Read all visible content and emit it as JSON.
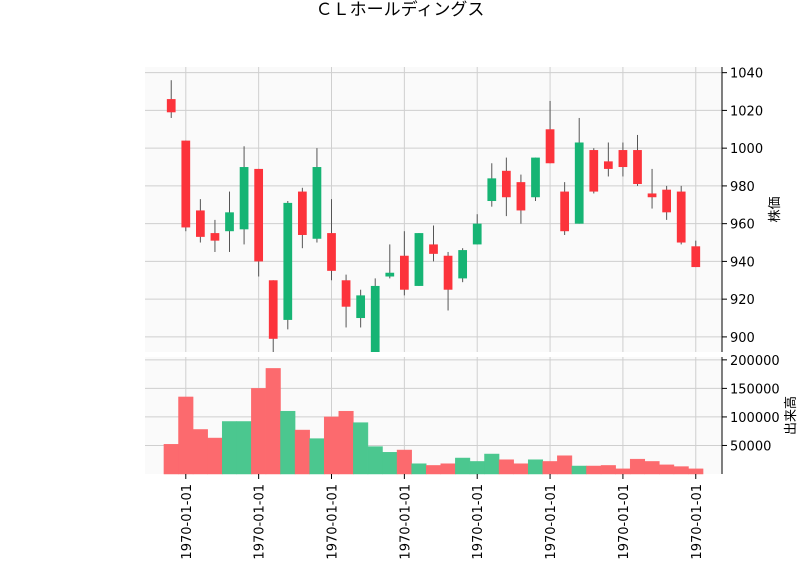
{
  "chart_data": {
    "type": "candlestick",
    "title": "ＣＬホールディングス",
    "up_color": "#16b474",
    "down_color": "#fc333b",
    "up_volume_color": "#4bc78f",
    "down_volume_color": "#fc6a6e",
    "price_panel": {
      "ylabel": "株価",
      "ylim": [
        892,
        1043
      ],
      "yticks": [
        900,
        920,
        940,
        960,
        980,
        1000,
        1020,
        1040
      ],
      "grid": true
    },
    "volume_panel": {
      "ylabel": "出来高",
      "ylim": [
        0,
        205000
      ],
      "yticks": [
        50000,
        100000,
        150000,
        200000
      ],
      "grid": true
    },
    "x_tick_labels": [
      "1970-01-01",
      "1970-01-01",
      "1970-01-01",
      "1970-01-01",
      "1970-01-01",
      "1970-01-01",
      "1970-01-01",
      "1970-01-01"
    ],
    "x_tick_positions": [
      1,
      6,
      11,
      16,
      21,
      26,
      31,
      36
    ],
    "candles": [
      {
        "open": 1026,
        "high": 1036,
        "low": 1016,
        "close": 1019,
        "volume": 52000
      },
      {
        "open": 1004,
        "high": 1004,
        "low": 956,
        "close": 958,
        "volume": 135000
      },
      {
        "open": 967,
        "high": 973,
        "low": 950,
        "close": 953,
        "volume": 78000
      },
      {
        "open": 955,
        "high": 962,
        "low": 945,
        "close": 951,
        "volume": 63000
      },
      {
        "open": 956,
        "high": 977,
        "low": 945,
        "close": 966,
        "volume": 92000
      },
      {
        "open": 957,
        "high": 1001,
        "low": 949,
        "close": 990,
        "volume": 92000
      },
      {
        "open": 989,
        "high": 989,
        "low": 932,
        "close": 940,
        "volume": 150000
      },
      {
        "open": 930,
        "high": 930,
        "low": 892,
        "close": 899,
        "volume": 185000
      },
      {
        "open": 909,
        "high": 972,
        "low": 904,
        "close": 971,
        "volume": 110000
      },
      {
        "open": 977,
        "high": 979,
        "low": 947,
        "close": 954,
        "volume": 77000
      },
      {
        "open": 952,
        "high": 1000,
        "low": 950,
        "close": 990,
        "volume": 62000
      },
      {
        "open": 955,
        "high": 973,
        "low": 930,
        "close": 935,
        "volume": 100000
      },
      {
        "open": 930,
        "high": 933,
        "low": 905,
        "close": 916,
        "volume": 110000
      },
      {
        "open": 910,
        "high": 925,
        "low": 905,
        "close": 922,
        "volume": 90000
      },
      {
        "open": 892,
        "high": 931,
        "low": 892,
        "close": 927,
        "volume": 48000
      },
      {
        "open": 932,
        "high": 949,
        "low": 931,
        "close": 934,
        "volume": 38000
      },
      {
        "open": 943,
        "high": 956,
        "low": 922,
        "close": 925,
        "volume": 42000
      },
      {
        "open": 927,
        "high": 955,
        "low": 927,
        "close": 955,
        "volume": 18000
      },
      {
        "open": 949,
        "high": 959,
        "low": 940,
        "close": 944,
        "volume": 15000
      },
      {
        "open": 943,
        "high": 945,
        "low": 914,
        "close": 925,
        "volume": 18000
      },
      {
        "open": 931,
        "high": 947,
        "low": 929,
        "close": 946,
        "volume": 28000
      },
      {
        "open": 949,
        "high": 965,
        "low": 949,
        "close": 960,
        "volume": 22000
      },
      {
        "open": 972,
        "high": 992,
        "low": 969,
        "close": 984,
        "volume": 35000
      },
      {
        "open": 988,
        "high": 995,
        "low": 964,
        "close": 974,
        "volume": 25000
      },
      {
        "open": 982,
        "high": 986,
        "low": 960,
        "close": 967,
        "volume": 18000
      },
      {
        "open": 974,
        "high": 995,
        "low": 972,
        "close": 995,
        "volume": 25000
      },
      {
        "open": 1010,
        "high": 1025,
        "low": 992,
        "close": 992,
        "volume": 22000
      },
      {
        "open": 977,
        "high": 982,
        "low": 954,
        "close": 956,
        "volume": 32000
      },
      {
        "open": 960,
        "high": 1016,
        "low": 960,
        "close": 1003,
        "volume": 14000
      },
      {
        "open": 999,
        "high": 1000,
        "low": 976,
        "close": 977,
        "volume": 14000
      },
      {
        "open": 993,
        "high": 1003,
        "low": 985,
        "close": 989,
        "volume": 15000
      },
      {
        "open": 999,
        "high": 1003,
        "low": 985,
        "close": 990,
        "volume": 9000
      },
      {
        "open": 999,
        "high": 1007,
        "low": 980,
        "close": 981,
        "volume": 26000
      },
      {
        "open": 976,
        "high": 989,
        "low": 968,
        "close": 974,
        "volume": 22000
      },
      {
        "open": 978,
        "high": 980,
        "low": 962,
        "close": 966,
        "volume": 16000
      },
      {
        "open": 977,
        "high": 980,
        "low": 949,
        "close": 950,
        "volume": 13000
      },
      {
        "open": 948,
        "high": 951,
        "low": 937,
        "close": 937,
        "volume": 9000
      }
    ]
  }
}
